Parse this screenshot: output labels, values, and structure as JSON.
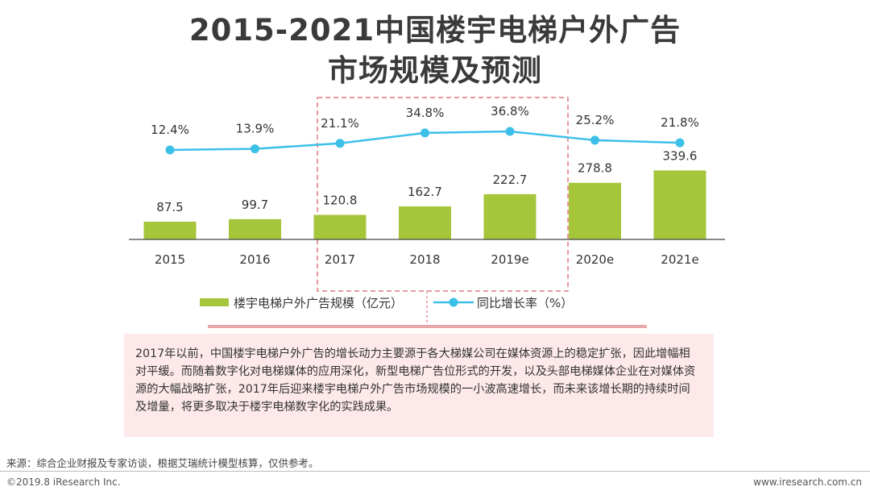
{
  "title_line1": "2015-2021中国楼宇电梯户外广告",
  "title_line2": "市场规模及预测",
  "chart_data": {
    "type": "bar",
    "categories": [
      "2015",
      "2016",
      "2017",
      "2018",
      "2019e",
      "2020e",
      "2021e"
    ],
    "series": [
      {
        "name": "楼宇电梯户外广告规模（亿元）",
        "type": "bar",
        "values": [
          87.5,
          99.7,
          120.8,
          162.7,
          222.7,
          278.8,
          339.6
        ],
        "labels": [
          "87.5",
          "99.7",
          "120.8",
          "162.7",
          "222.7",
          "278.8",
          "339.6"
        ]
      },
      {
        "name": "同比增长率（%）",
        "type": "line",
        "values": [
          12.4,
          13.9,
          21.1,
          34.8,
          36.8,
          25.2,
          21.8
        ],
        "labels": [
          "12.4%",
          "13.9%",
          "21.1%",
          "34.8%",
          "36.8%",
          "25.2%",
          "21.8%"
        ]
      }
    ],
    "highlight_range": [
      "2017",
      "2019e"
    ],
    "colors": {
      "bar": "#a5c63b",
      "line": "#3cc0e8",
      "highlight": "#e2797f"
    }
  },
  "description": "2017年以前，中国楼宇电梯户外广告的增长动力主要源于各大梯媒公司在媒体资源上的稳定扩张，因此增幅相对平缓。而随着数字化对电梯媒体的应用深化，新型电梯广告位形式的开发，以及头部电梯媒体企业在对媒体资源的大幅战略扩张，2017年后迎来楼宇电梯户外广告市场规模的一小波高速增长，而未来该增长期的持续时间及增量，将更多取决于楼宇电梯数字化的实践成果。",
  "source": "来源：综合企业财报及专家访谈，根据艾瑞统计模型核算，仅供参考。",
  "copyright": "©2019.8 iResearch Inc.",
  "website": "www.iresearch.com.cn"
}
